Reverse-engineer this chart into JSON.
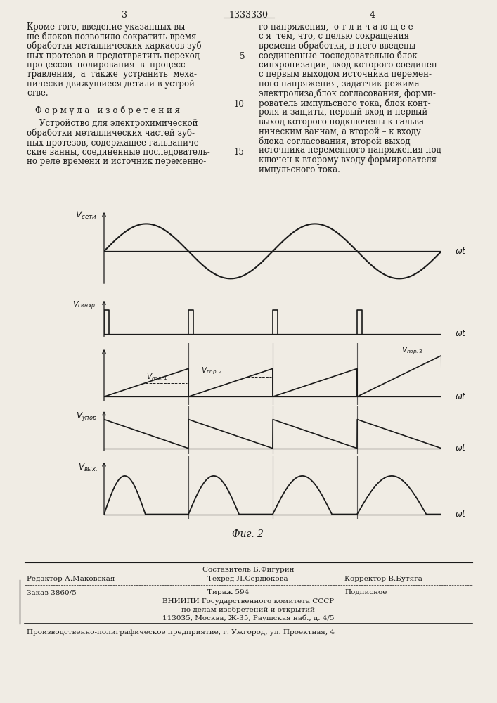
{
  "title_page_num_left": "3",
  "title_center": "1333330",
  "title_page_num_right": "4",
  "left_lines": [
    "Кроме того, введение указанных вы-",
    "ше блоков позволило сократить время",
    "обработки металлических каркасов зуб-",
    "ных протезов и предотвратить переход",
    "процессов  полирования  в  процесс",
    "травления,  а  также  устранить  меха-",
    "нически движущиеся детали в устрой-",
    "стве."
  ],
  "formula_title": "Ф о р м у л а   и з о б р е т е н и я",
  "formula_lines": [
    "Устройство для электрохимической",
    "обработки металлических частей зуб-",
    "ных протезов, содержащее гальваниче-",
    "ские ванны, соединенные последователь-",
    "но реле времени и источник переменно-"
  ],
  "right_lines": [
    "го напряжения,  о т л и ч а ю щ е е -",
    "с я  тем, что, с целью сокращения",
    "времени обработки, в него введены",
    "соединенные последовательно блок",
    "синхронизации, вход которого соединен",
    "с первым выходом источника перемен-",
    "ного напряжения, задатчик режима",
    "электролиза,блок согласования, форми-",
    "рователь импульсного тока, блок конт-",
    "роля и защиты, первый вход и первый",
    "выход которого подключены к гальва-",
    "ническим ваннам, а второй – к входу",
    "блока согласования, второй выход",
    "источника переменного напряжения под-",
    "ключен к второму входу формирователя",
    "импульсного тока."
  ],
  "fig_caption": "Фиг. 2",
  "footer_composer": "Составитель Б.Фигурин",
  "footer_editor": "Редактор А.Маковская",
  "footer_techred": "Техред Л.Сердюкова",
  "footer_corrector": "Корректор В.Бутяга",
  "footer_order": "Заказ 3860/5",
  "footer_tirazh": "Тираж 594",
  "footer_podp": "Подписное",
  "footer_vniipи": "ВНИИПИ Государственного комитета СССР",
  "footer_dela": "по делам изобретений и открытий",
  "footer_addr": "113035, Москва, Ж-35, Раушская наб., д. 4/5",
  "footer_prod": "Производственно-полиграфическое предприятие, г. Ужгород, ул. Проектная, 4",
  "bg_color": "#f0ece4",
  "text_color": "#1a1a1a",
  "line_color": "#1a1a1a"
}
